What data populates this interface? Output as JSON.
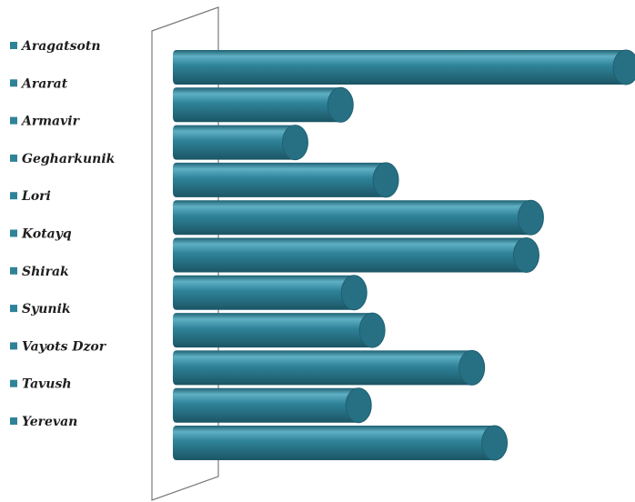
{
  "chart_data": {
    "type": "bar",
    "orientation": "horizontal",
    "style": "3d-cylinder",
    "title": "",
    "xlabel": "",
    "ylabel": "",
    "categories": [
      "Aragatsotn",
      "Ararat",
      "Armavir",
      "Gegharkunik",
      "Lori",
      "Kotayq",
      "Shirak",
      "Syunik",
      "Vayots Dzor",
      "Tavush",
      "Yerevan"
    ],
    "values": [
      100,
      37,
      27,
      47,
      79,
      78,
      40,
      44,
      66,
      41,
      71
    ],
    "xlim": [
      0,
      100
    ],
    "grid": false,
    "legend": "left",
    "colors": {
      "bar_body": "#2f8399",
      "bar_highlight": "#5fb0c4",
      "bar_dark": "#1f6173",
      "bar_cap": "#276f82",
      "marker": "#2f8399",
      "wall_stroke": "#7a7a7a"
    }
  }
}
